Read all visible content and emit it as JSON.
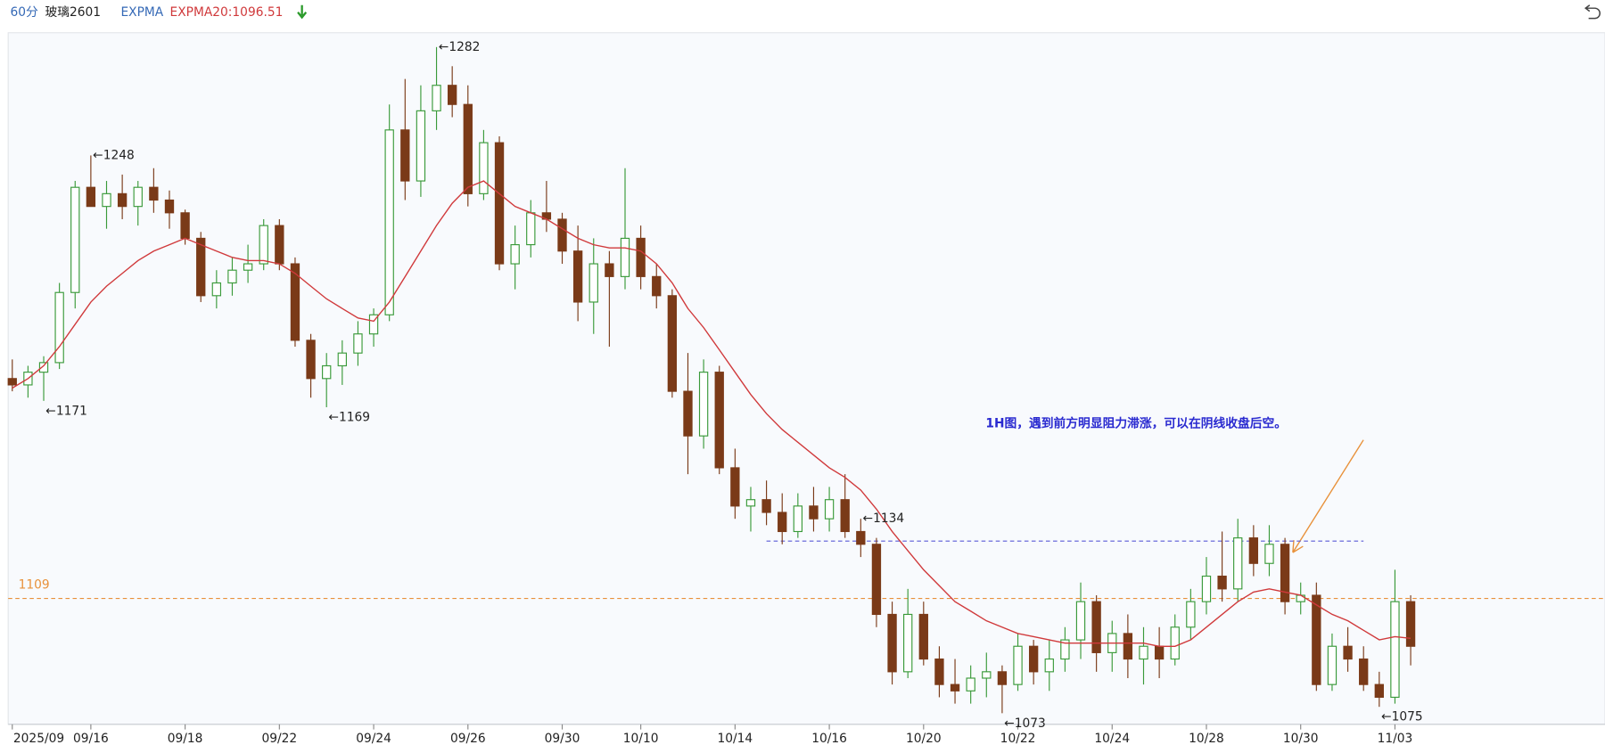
{
  "chart_data": {
    "type": "candlestick",
    "period": "60分",
    "title": "玻璃2601",
    "indicator": "EXPMA",
    "indicator_value": "EXPMA20:1096.51",
    "annotation": "1H图，遇到前方明显阻力滞涨，可以在阴线收盘后空。",
    "annotation_color": "#2a2ad0",
    "up_color": "#3a9a3a",
    "down_color": "#7a3a18",
    "ema_color": "#d0393b",
    "ylim": [
      1069.5,
      1286.5
    ],
    "categories": [
      "2025/09",
      null,
      null,
      null,
      null,
      "09/16",
      null,
      null,
      null,
      null,
      null,
      "09/18",
      null,
      null,
      null,
      null,
      null,
      "09/22",
      null,
      null,
      null,
      null,
      null,
      "09/24",
      null,
      null,
      null,
      null,
      null,
      "09/26",
      null,
      null,
      null,
      null,
      null,
      "09/30",
      null,
      null,
      null,
      null,
      "10/10",
      null,
      null,
      null,
      null,
      null,
      "10/14",
      null,
      null,
      null,
      null,
      null,
      "10/16",
      null,
      null,
      null,
      null,
      null,
      "10/20",
      null,
      null,
      null,
      null,
      null,
      "10/22",
      null,
      null,
      null,
      null,
      null,
      "10/24",
      null,
      null,
      null,
      null,
      null,
      "10/28",
      null,
      null,
      null,
      null,
      null,
      "10/30",
      null,
      null,
      null,
      null,
      null,
      "11/03",
      null
    ],
    "ohlc": [
      [
        1178,
        1184,
        1174,
        1176
      ],
      [
        1176,
        1182,
        1172,
        1180
      ],
      [
        1180,
        1185,
        1171,
        1183
      ],
      [
        1183,
        1208,
        1181,
        1205
      ],
      [
        1205,
        1240,
        1200,
        1238
      ],
      [
        1238,
        1248,
        1232,
        1232
      ],
      [
        1232,
        1240,
        1225,
        1236
      ],
      [
        1236,
        1242,
        1228,
        1232
      ],
      [
        1232,
        1240,
        1226,
        1238
      ],
      [
        1238,
        1244,
        1230,
        1234
      ],
      [
        1234,
        1237,
        1225,
        1230
      ],
      [
        1230,
        1231,
        1220,
        1222
      ],
      [
        1222,
        1224,
        1202,
        1204
      ],
      [
        1204,
        1212,
        1200,
        1208
      ],
      [
        1208,
        1216,
        1204,
        1212
      ],
      [
        1212,
        1220,
        1208,
        1214
      ],
      [
        1214,
        1228,
        1212,
        1226
      ],
      [
        1226,
        1228,
        1212,
        1214
      ],
      [
        1214,
        1216,
        1188,
        1190
      ],
      [
        1190,
        1192,
        1172,
        1178
      ],
      [
        1178,
        1186,
        1169,
        1182
      ],
      [
        1182,
        1190,
        1176,
        1186
      ],
      [
        1186,
        1196,
        1182,
        1192
      ],
      [
        1192,
        1200,
        1188,
        1198
      ],
      [
        1198,
        1264,
        1196,
        1256
      ],
      [
        1256,
        1272,
        1234,
        1240
      ],
      [
        1240,
        1270,
        1235,
        1262
      ],
      [
        1262,
        1282,
        1256,
        1270
      ],
      [
        1270,
        1276,
        1260,
        1264
      ],
      [
        1264,
        1270,
        1232,
        1236
      ],
      [
        1236,
        1256,
        1234,
        1252
      ],
      [
        1252,
        1254,
        1212,
        1214
      ],
      [
        1214,
        1226,
        1206,
        1220
      ],
      [
        1220,
        1234,
        1216,
        1230
      ],
      [
        1230,
        1240,
        1224,
        1228
      ],
      [
        1228,
        1230,
        1214,
        1218
      ],
      [
        1218,
        1226,
        1196,
        1202
      ],
      [
        1202,
        1222,
        1192,
        1214
      ],
      [
        1214,
        1218,
        1188,
        1210
      ],
      [
        1210,
        1244,
        1206,
        1222
      ],
      [
        1222,
        1226,
        1206,
        1210
      ],
      [
        1210,
        1214,
        1200,
        1204
      ],
      [
        1204,
        1206,
        1172,
        1174
      ],
      [
        1174,
        1186,
        1148,
        1160
      ],
      [
        1160,
        1184,
        1156,
        1180
      ],
      [
        1180,
        1182,
        1148,
        1150
      ],
      [
        1150,
        1156,
        1134,
        1138
      ],
      [
        1138,
        1144,
        1130,
        1140
      ],
      [
        1140,
        1146,
        1132,
        1136
      ],
      [
        1136,
        1142,
        1126,
        1130
      ],
      [
        1130,
        1142,
        1128,
        1138
      ],
      [
        1138,
        1144,
        1130,
        1134
      ],
      [
        1134,
        1144,
        1130,
        1140
      ],
      [
        1140,
        1148,
        1128,
        1130
      ],
      [
        1130,
        1134,
        1122,
        1126
      ],
      [
        1126,
        1128,
        1100,
        1104
      ],
      [
        1104,
        1108,
        1082,
        1086
      ],
      [
        1086,
        1112,
        1084,
        1104
      ],
      [
        1104,
        1108,
        1088,
        1090
      ],
      [
        1090,
        1094,
        1078,
        1082
      ],
      [
        1082,
        1090,
        1076,
        1080
      ],
      [
        1080,
        1088,
        1076,
        1084
      ],
      [
        1084,
        1092,
        1078,
        1086
      ],
      [
        1086,
        1088,
        1073,
        1082
      ],
      [
        1082,
        1098,
        1080,
        1094
      ],
      [
        1094,
        1096,
        1082,
        1086
      ],
      [
        1086,
        1096,
        1080,
        1090
      ],
      [
        1090,
        1100,
        1086,
        1096
      ],
      [
        1096,
        1114,
        1090,
        1108
      ],
      [
        1108,
        1110,
        1086,
        1092
      ],
      [
        1092,
        1102,
        1086,
        1098
      ],
      [
        1098,
        1104,
        1084,
        1090
      ],
      [
        1090,
        1100,
        1082,
        1094
      ],
      [
        1094,
        1100,
        1084,
        1090
      ],
      [
        1090,
        1104,
        1088,
        1100
      ],
      [
        1100,
        1112,
        1096,
        1108
      ],
      [
        1108,
        1122,
        1104,
        1116
      ],
      [
        1116,
        1130,
        1108,
        1112
      ],
      [
        1112,
        1134,
        1108,
        1128
      ],
      [
        1128,
        1132,
        1116,
        1120
      ],
      [
        1120,
        1132,
        1116,
        1126
      ],
      [
        1126,
        1128,
        1104,
        1108
      ],
      [
        1108,
        1114,
        1104,
        1110
      ],
      [
        1110,
        1114,
        1080,
        1082
      ],
      [
        1082,
        1098,
        1080,
        1094
      ],
      [
        1094,
        1100,
        1086,
        1090
      ],
      [
        1090,
        1094,
        1080,
        1082
      ],
      [
        1082,
        1086,
        1075,
        1078
      ],
      [
        1078,
        1118,
        1076,
        1108
      ],
      [
        1108,
        1110,
        1088,
        1094
      ]
    ],
    "ema": [
      1175,
      1178,
      1182,
      1188,
      1195,
      1202,
      1207,
      1211,
      1215,
      1218,
      1220,
      1222,
      1220,
      1218,
      1216,
      1215,
      1215,
      1214,
      1211,
      1207,
      1203,
      1200,
      1197,
      1196,
      1202,
      1210,
      1218,
      1226,
      1233,
      1238,
      1240,
      1236,
      1232,
      1230,
      1228,
      1225,
      1222,
      1220,
      1219,
      1219,
      1218,
      1214,
      1208,
      1200,
      1194,
      1187,
      1180,
      1173,
      1167,
      1162,
      1158,
      1154,
      1150,
      1147,
      1143,
      1137,
      1130,
      1124,
      1118,
      1113,
      1108,
      1105,
      1102,
      1100,
      1098,
      1097,
      1096,
      1095,
      1095,
      1095,
      1095,
      1095,
      1095,
      1094,
      1094,
      1096,
      1100,
      1104,
      1108,
      1111,
      1112,
      1111,
      1110,
      1107,
      1104,
      1102,
      1099,
      1096,
      1097,
      1096.51
    ],
    "extremes": [
      {
        "value": 1171,
        "label": "←1171"
      },
      {
        "value": 1248,
        "label": "←1248"
      },
      {
        "value": 1169,
        "label": "←1169"
      },
      {
        "value": 1282,
        "label": "←1282"
      },
      {
        "value": 1134,
        "label": "←1134"
      },
      {
        "value": 1073,
        "label": "←1073"
      },
      {
        "value": 1075,
        "label": "←1075"
      }
    ],
    "hlines": [
      {
        "value": 1109,
        "label": "1109",
        "color": "#e8913a"
      },
      {
        "value": 1127,
        "color": "#5b5bd6",
        "start": 48,
        "end": 86
      }
    ]
  }
}
